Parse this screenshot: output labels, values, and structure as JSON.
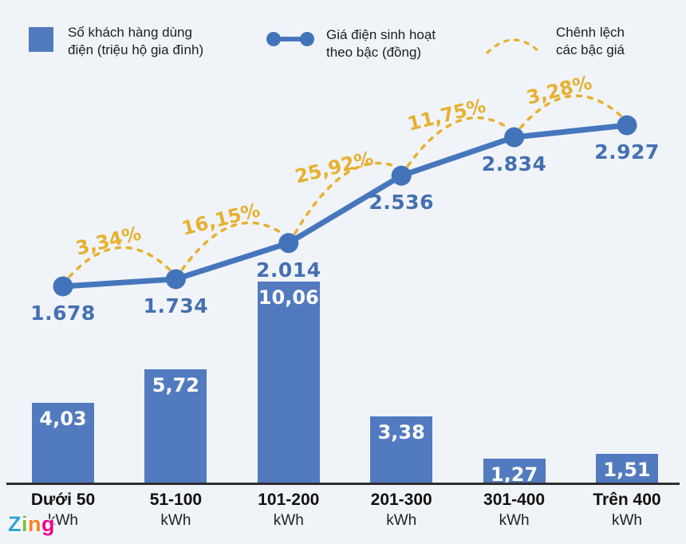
{
  "legend": {
    "items": [
      {
        "id": "customers",
        "line1": "Số khách hàng dùng",
        "line2": "điện (triệu hộ gia đình)"
      },
      {
        "id": "price",
        "line1": "Giá điện sinh hoạt",
        "line2": "theo bậc (đồng)"
      },
      {
        "id": "gap",
        "line1": "Chênh lệch",
        "line2": "các bậc giá"
      }
    ]
  },
  "watermark": {
    "letters": [
      {
        "ch": "Z",
        "color": "#33a3dc"
      },
      {
        "ch": "i",
        "color": "#7ac143"
      },
      {
        "ch": "n",
        "color": "#f58220"
      },
      {
        "ch": "g",
        "color": "#ec008c"
      }
    ]
  },
  "colors": {
    "background": "#f0f4f8",
    "bar": "#527abf",
    "line": "#4677bd",
    "dot": "#4374ba",
    "value_label": "#4470b2",
    "accent_gold": "#e7b02f",
    "axis": "#2e2e2e",
    "bar_label": "#ffffff"
  },
  "chart_data": {
    "type": [
      "bar",
      "line"
    ],
    "grid": false,
    "legend_position": "top",
    "categories": [
      "Dưới 50 kWh",
      "51-100 kWh",
      "101-200 kWh",
      "201-300 kWh",
      "301-400 kWh",
      "Trên 400 kWh"
    ],
    "category_lines": [
      {
        "line1": "Dưới 50",
        "line2": "kWh"
      },
      {
        "line1": "51-100",
        "line2": "kWh"
      },
      {
        "line1": "101-200",
        "line2": "kWh"
      },
      {
        "line1": "201-300",
        "line2": "kWh"
      },
      {
        "line1": "301-400",
        "line2": "kWh"
      },
      {
        "line1": "Trên 400",
        "line2": "kWh"
      }
    ],
    "series": [
      {
        "name": "Số khách hàng dùng điện (triệu hộ gia đình)",
        "type": "bar",
        "values": [
          4.03,
          5.72,
          10.06,
          3.38,
          1.27,
          1.51
        ],
        "labels": [
          "4,03",
          "5,72",
          "10,06",
          "3,38",
          "1,27",
          "1,51"
        ],
        "ylim": [
          0,
          10.06
        ]
      },
      {
        "name": "Giá điện sinh hoạt theo bậc (đồng)",
        "type": "line",
        "values": [
          1678,
          1734,
          2014,
          2536,
          2834,
          2927
        ],
        "labels": [
          "1.678",
          "1.734",
          "2.014",
          "2.536",
          "2.834",
          "2.927"
        ]
      },
      {
        "name": "Chênh lệch các bậc giá",
        "type": "arc",
        "values_pct": [
          3.34,
          16.15,
          25.92,
          11.75,
          3.28
        ],
        "labels": [
          "3,34%",
          "16,15%",
          "25,92%",
          "11,75%",
          "3,28%"
        ]
      }
    ]
  }
}
